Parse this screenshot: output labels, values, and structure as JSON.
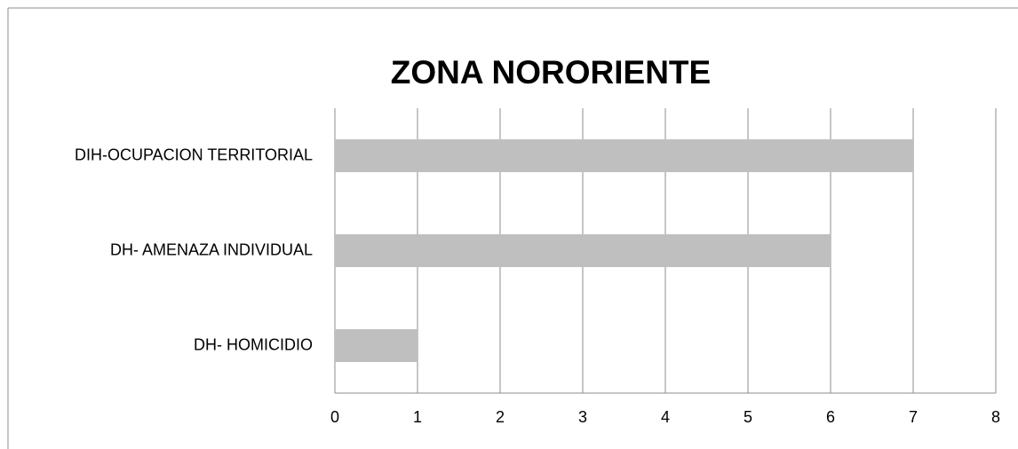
{
  "chart_data": {
    "type": "bar",
    "orientation": "horizontal",
    "title": "ZONA NORORIENTE",
    "categories": [
      "DIH-OCUPACION TERRITORIAL",
      "DH- AMENAZA INDIVIDUAL",
      "DH- HOMICIDIO"
    ],
    "values": [
      7,
      6,
      1
    ],
    "color": "#bfbfbf",
    "xlim": [
      0,
      8
    ],
    "xticks": [
      0,
      1,
      2,
      3,
      4,
      5,
      6,
      7,
      8
    ],
    "grid": true
  }
}
